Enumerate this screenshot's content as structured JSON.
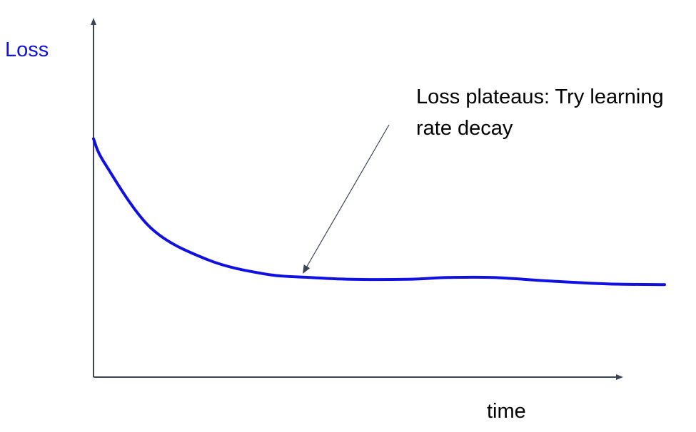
{
  "chart_data": {
    "type": "line",
    "ylabel": "Loss",
    "xlabel": "time",
    "annotation": "Loss plateaus: Try learning rate decay",
    "series": [
      {
        "x": [
          0,
          0.02,
          0.1,
          0.2,
          0.3,
          0.38,
          0.45,
          0.55,
          0.62,
          0.7,
          0.8,
          0.9,
          1.0
        ],
        "y": [
          0.67,
          0.6,
          0.42,
          0.33,
          0.29,
          0.28,
          0.275,
          0.275,
          0.28,
          0.28,
          0.27,
          0.262,
          0.26
        ]
      }
    ],
    "annotation_target": {
      "x": 0.37,
      "y": 0.28
    },
    "xlim": [
      0,
      1.1
    ],
    "ylim": [
      0,
      1
    ],
    "grid": false,
    "colors": {
      "line": "#1010e0",
      "ylabel": "#1010e0",
      "axis": "#3d4555",
      "arrow": "#3d4555"
    }
  }
}
